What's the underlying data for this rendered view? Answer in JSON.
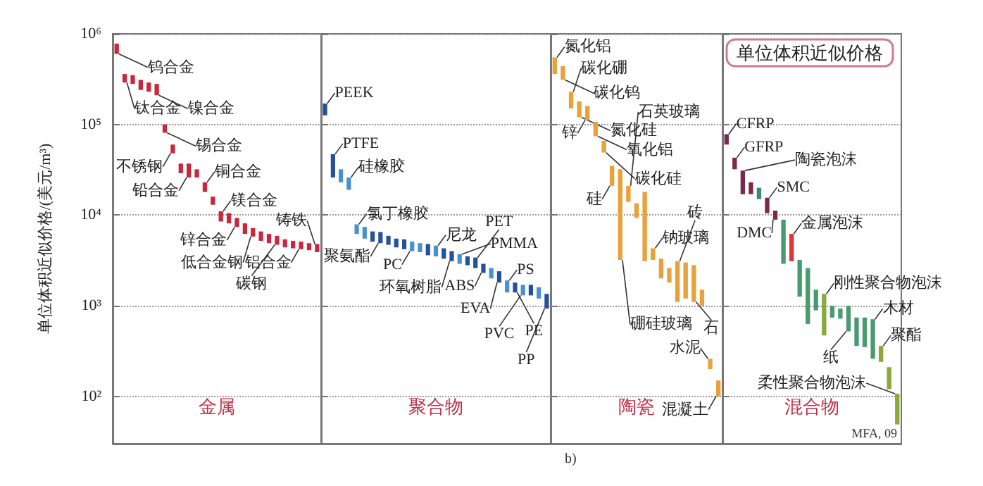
{
  "chart_data": [
    {
      "type": "bar",
      "ylabel": "单位体积近似价格/(美元/m³)",
      "xlabel": "金属",
      "categories": [
        null,
        null,
        null,
        null,
        null,
        null,
        null,
        null,
        null,
        null,
        null,
        null,
        null,
        null,
        null,
        null,
        null,
        null,
        null,
        null,
        null,
        null,
        null,
        null,
        null,
        null
      ],
      "base": [
        600000,
        290000,
        280000,
        240000,
        230000,
        210000,
        81000,
        48000,
        29000,
        26000,
        26000,
        18000,
        13000,
        8500,
        8100,
        7400,
        6200,
        5800,
        5200,
        4900,
        4700,
        4400,
        4300,
        4200,
        4100,
        3900
      ],
      "values": [
        180000,
        70000,
        70000,
        70000,
        60000,
        70000,
        19000,
        12000,
        8000,
        11000,
        6000,
        5000,
        3000,
        2500,
        2400,
        1900,
        1900,
        1400,
        1400,
        1300,
        1200,
        1000,
        900,
        900,
        800,
        900
      ],
      "value_labels": [
        "钨合金",
        "钛合金",
        null,
        null,
        null,
        "镍合金",
        "锡合金",
        "不锈钢",
        null,
        "铅合金",
        null,
        "铜合金",
        null,
        "镁合金",
        null,
        "锌合金",
        null,
        "低合金钢",
        null,
        null,
        "碳钢",
        null,
        null,
        "铝合金",
        null,
        "铸铁"
      ],
      "colors": [
        "#c8283c",
        "#c8283c",
        "#c8283c",
        "#c8283c",
        "#c8283c",
        "#c8283c",
        "#c8283c",
        "#c8283c",
        "#c8283c",
        "#c8283c",
        "#c8283c",
        "#c8283c",
        "#c8283c",
        "#c8283c",
        "#c8283c",
        "#c8283c",
        "#c8283c",
        "#c8283c",
        "#c8283c",
        "#c8283c",
        "#c8283c",
        "#c8283c",
        "#c8283c",
        "#c8283c",
        "#c8283c",
        "#c8283c"
      ],
      "log": true,
      "ylim": [
        30,
        1000000
      ],
      "yticks": [
        {
          "value": 100,
          "label": "10²"
        },
        {
          "value": 1000,
          "label": "10³"
        },
        {
          "value": 10000,
          "label": "10⁴"
        },
        {
          "value": 100000,
          "label": "10⁵"
        },
        {
          "value": 1000000,
          "label": "10⁶"
        }
      ],
      "grid": "y",
      "tick_labels": "y"
    },
    {
      "type": "bar",
      "xlabel": "聚合物",
      "categories": [
        null,
        null,
        null,
        null,
        null,
        null,
        null,
        null,
        null,
        null,
        null,
        null,
        null,
        null,
        null,
        null,
        null,
        null,
        null,
        null,
        null,
        null,
        null,
        null,
        null,
        null,
        null,
        null,
        null
      ],
      "base": [
        126000,
        26000,
        23000,
        19000,
        6200,
        5500,
        5100,
        4900,
        4700,
        4400,
        4200,
        4000,
        3900,
        3600,
        3500,
        3300,
        3100,
        2900,
        2800,
        2600,
        2300,
        2000,
        1800,
        1400,
        1400,
        1300,
        1300,
        1200,
        930
      ],
      "values": [
        44000,
        21000,
        9000,
        7000,
        1700,
        1900,
        1500,
        1600,
        1200,
        1100,
        1200,
        1100,
        1000,
        1200,
        1100,
        1000,
        900,
        800,
        700,
        800,
        600,
        600,
        600,
        500,
        400,
        400,
        400,
        400,
        420
      ],
      "value_labels": [
        "PEEK",
        "PTFE",
        null,
        "硅橡胶",
        "氯丁橡胶",
        null,
        null,
        "聚氨酯",
        null,
        null,
        null,
        "PC",
        null,
        null,
        "尼龙",
        null,
        "环氧树脂",
        "PMMA",
        null,
        "PET",
        "ABS",
        null,
        "EVA",
        "PS",
        "PE",
        "PVC",
        null,
        null,
        "PP"
      ],
      "colors": [
        "#24509c",
        "#24509c",
        "#4791cf",
        "#4791cf",
        "#4791cf",
        "#4791cf",
        "#24509c",
        "#24509c",
        "#24509c",
        "#24509c",
        "#24509c",
        "#4791cf",
        "#4791cf",
        "#24509c",
        "#4791cf",
        "#24509c",
        "#24509c",
        "#4791cf",
        "#24509c",
        "#24509c",
        "#24509c",
        "#4791cf",
        "#24509c",
        "#4791cf",
        "#24509c",
        "#4791cf",
        "#24509c",
        "#4791cf",
        "#24509c"
      ],
      "log": true,
      "ylim": [
        30,
        1000000
      ],
      "yticks": [
        100,
        1000,
        10000,
        100000,
        1000000
      ],
      "grid": "y",
      "tick_labels": false
    },
    {
      "type": "bar",
      "xlabel": "陶瓷",
      "categories": [
        null,
        null,
        null,
        null,
        null,
        null,
        null,
        null,
        null,
        null,
        null,
        null,
        null,
        null,
        null,
        null,
        null,
        null,
        null,
        null,
        null
      ],
      "base": [
        360000,
        310000,
        150000,
        120000,
        112000,
        74000,
        49000,
        21000,
        3200,
        14000,
        9300,
        3100,
        3200,
        2000,
        1800,
        1100,
        1200,
        1100,
        1000,
        200,
        100
      ],
      "values": [
        190000,
        130000,
        80000,
        60000,
        48000,
        33000,
        17000,
        14000,
        28800,
        7000,
        4200,
        14900,
        1100,
        1300,
        800,
        2000,
        1800,
        1700,
        500,
        60,
        50
      ],
      "value_labels": [
        "氮化铝",
        "碳化钨",
        "碳化硼",
        "氮化硅",
        "锌",
        "氧化铝",
        "碳化硅",
        "硅",
        "硼硅玻璃",
        "石英玻璃",
        null,
        null,
        "钠玻璃",
        null,
        null,
        "砖",
        null,
        "石",
        null,
        "水泥",
        "混凝土"
      ],
      "colors": [
        "#e8a23c",
        "#e8a23c",
        "#e8a23c",
        "#e8a23c",
        "#e8a23c",
        "#e8a23c",
        "#e8a23c",
        "#e8a23c",
        "#e8a23c",
        "#e8a23c",
        "#e8a23c",
        "#e8a23c",
        "#e8a23c",
        "#e8a23c",
        "#e8a23c",
        "#e8a23c",
        "#e8a23c",
        "#e8a23c",
        "#e8a23c",
        "#e8a23c",
        "#e8a23c"
      ],
      "log": true,
      "ylim": [
        30,
        1000000
      ],
      "yticks": [
        100,
        1000,
        10000,
        100000,
        1000000
      ],
      "grid": "y",
      "tick_labels": false,
      "annotations": [
        "b)"
      ]
    },
    {
      "type": "bar",
      "title": "单位体积近似价格",
      "xlabel": "混合物",
      "categories": [
        null,
        null,
        null,
        null,
        null,
        null,
        null,
        null,
        null,
        null,
        null,
        null,
        null,
        null,
        null,
        null,
        null,
        null,
        null,
        null,
        null,
        null
      ],
      "base": [
        60000,
        32000,
        17000,
        17000,
        15000,
        10500,
        8900,
        2900,
        3100,
        1260,
        630,
        890,
        470,
        740,
        720,
        520,
        360,
        350,
        260,
        240,
        120,
        49
      ],
      "values": [
        18000,
        11000,
        14000,
        6000,
        5000,
        5000,
        2300,
        6000,
        3100,
        1940,
        1970,
        610,
        880,
        260,
        210,
        480,
        380,
        390,
        450,
        120,
        90,
        58
      ],
      "value_labels": [
        "CFRP",
        "GFRP",
        "陶瓷泡沫",
        null,
        null,
        "SMC",
        "DMC",
        null,
        "金属泡沫",
        null,
        null,
        null,
        "刚性聚合物泡沫",
        null,
        null,
        "纸",
        null,
        null,
        "木材",
        "聚酯",
        null,
        "柔性聚合物泡沫"
      ],
      "colors": [
        "#7a2a4a",
        "#7a2a4a",
        "#7a2a4a",
        "#7a2a4a",
        "#3a8a7a",
        "#7a2a4a",
        "#7a2a4a",
        "#4a9a70",
        "#d8383a",
        "#4a9a70",
        "#4a9a70",
        "#4a9a70",
        "#8aa83c",
        "#4a9a70",
        "#4a9a70",
        "#4a9a70",
        "#4a9a70",
        "#4a9a70",
        "#4a9a70",
        "#8aa83c",
        "#8aa83c",
        "#8aa83c"
      ],
      "log": true,
      "ylim": [
        30,
        1000000
      ],
      "yticks": [
        100,
        1000,
        10000,
        100000,
        1000000
      ],
      "grid": "y",
      "tick_labels": false,
      "annotations": [
        "MFA, 09"
      ]
    }
  ]
}
